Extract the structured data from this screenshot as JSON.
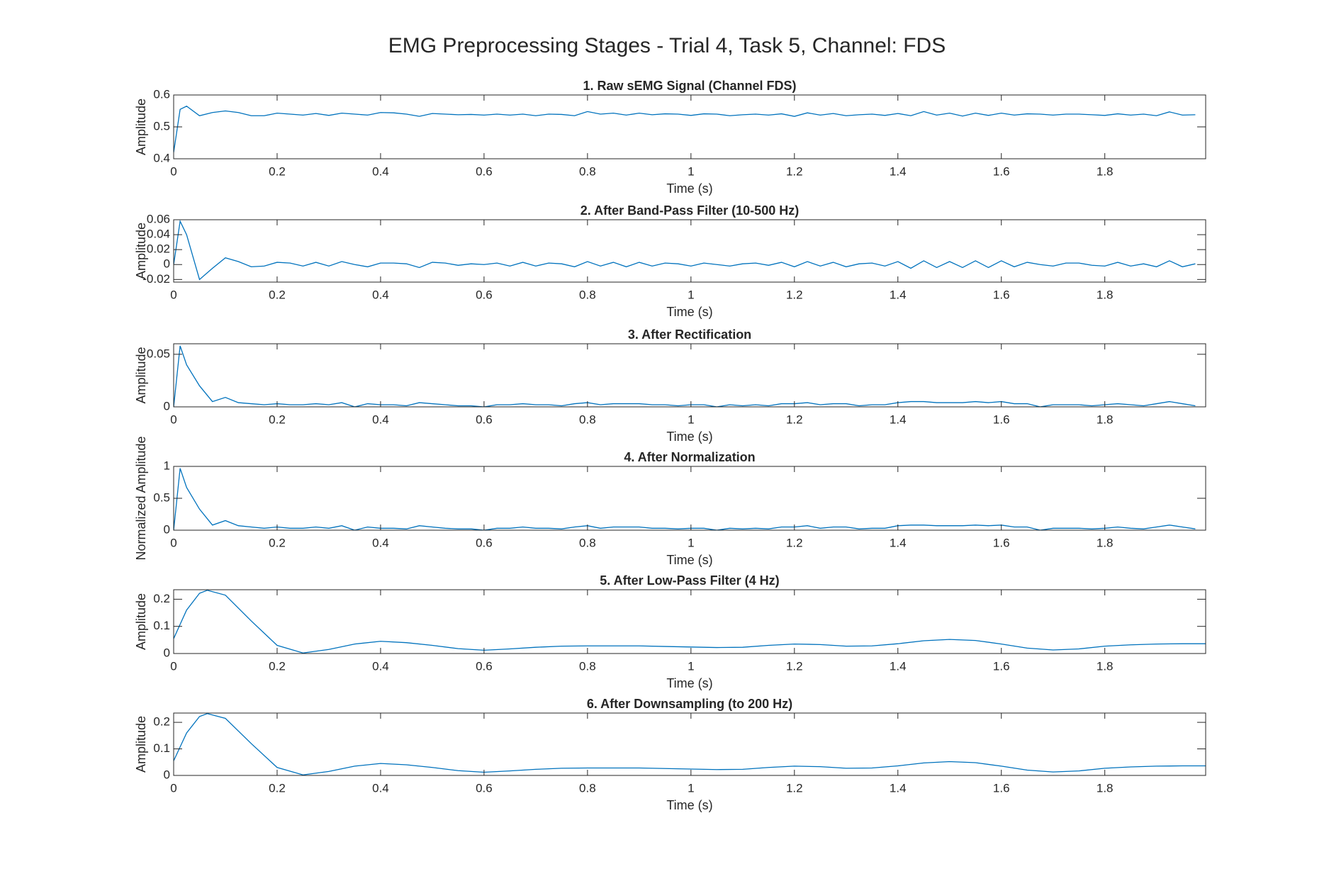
{
  "title": "EMG Preprocessing Stages - Trial 4, Task 5, Channel: FDS",
  "chart_data": [
    {
      "type": "line",
      "title": "1. Raw sEMG Signal (Channel FDS)",
      "xlabel": "Time (s)",
      "ylabel": "Amplitude",
      "color": "#0072bd",
      "x": [
        0,
        0.0125,
        0.025,
        0.05,
        0.075,
        0.1,
        0.125,
        0.15,
        0.175,
        0.2,
        0.225,
        0.25,
        0.275,
        0.3,
        0.325,
        0.35,
        0.375,
        0.4,
        0.425,
        0.45,
        0.475,
        0.5,
        0.525,
        0.55,
        0.575,
        0.6,
        0.625,
        0.65,
        0.675,
        0.7,
        0.725,
        0.75,
        0.775,
        0.8,
        0.825,
        0.85,
        0.875,
        0.9,
        0.925,
        0.95,
        0.975,
        1.0,
        1.025,
        1.05,
        1.075,
        1.1,
        1.125,
        1.15,
        1.175,
        1.2,
        1.225,
        1.25,
        1.275,
        1.3,
        1.325,
        1.35,
        1.375,
        1.4,
        1.425,
        1.45,
        1.475,
        1.5,
        1.525,
        1.55,
        1.575,
        1.6,
        1.625,
        1.65,
        1.675,
        1.7,
        1.725,
        1.75,
        1.775,
        1.8,
        1.825,
        1.85,
        1.875,
        1.9,
        1.925,
        1.95,
        1.975
      ],
      "values": [
        0.42,
        0.555,
        0.565,
        0.535,
        0.545,
        0.55,
        0.545,
        0.535,
        0.535,
        0.543,
        0.54,
        0.537,
        0.542,
        0.536,
        0.543,
        0.54,
        0.537,
        0.545,
        0.544,
        0.54,
        0.533,
        0.542,
        0.54,
        0.538,
        0.539,
        0.537,
        0.54,
        0.537,
        0.54,
        0.535,
        0.54,
        0.539,
        0.535,
        0.548,
        0.54,
        0.543,
        0.537,
        0.543,
        0.538,
        0.541,
        0.54,
        0.536,
        0.541,
        0.54,
        0.535,
        0.538,
        0.54,
        0.537,
        0.541,
        0.533,
        0.544,
        0.537,
        0.542,
        0.535,
        0.538,
        0.54,
        0.536,
        0.542,
        0.535,
        0.548,
        0.537,
        0.543,
        0.534,
        0.543,
        0.536,
        0.543,
        0.537,
        0.541,
        0.54,
        0.537,
        0.54,
        0.54,
        0.538,
        0.536,
        0.541,
        0.537,
        0.54,
        0.535,
        0.547,
        0.537,
        0.538
      ],
      "xlim": [
        0,
        1.995
      ],
      "xticks": [
        0,
        0.2,
        0.4,
        0.6,
        0.8,
        1,
        1.2,
        1.4,
        1.6,
        1.8
      ],
      "ylim": [
        0.4,
        0.6
      ],
      "yticks": [
        0.4,
        0.5,
        0.6
      ]
    },
    {
      "type": "line",
      "title": "2. After Band-Pass Filter (10-500 Hz)",
      "xlabel": "Time (s)",
      "ylabel": "Amplitude",
      "color": "#0072bd",
      "x": [
        0,
        0.0125,
        0.025,
        0.05,
        0.075,
        0.1,
        0.125,
        0.15,
        0.175,
        0.2,
        0.225,
        0.25,
        0.275,
        0.3,
        0.325,
        0.35,
        0.375,
        0.4,
        0.425,
        0.45,
        0.475,
        0.5,
        0.525,
        0.55,
        0.575,
        0.6,
        0.625,
        0.65,
        0.675,
        0.7,
        0.725,
        0.75,
        0.775,
        0.8,
        0.825,
        0.85,
        0.875,
        0.9,
        0.925,
        0.95,
        0.975,
        1.0,
        1.025,
        1.05,
        1.075,
        1.1,
        1.125,
        1.15,
        1.175,
        1.2,
        1.225,
        1.25,
        1.275,
        1.3,
        1.325,
        1.35,
        1.375,
        1.4,
        1.425,
        1.45,
        1.475,
        1.5,
        1.525,
        1.55,
        1.575,
        1.6,
        1.625,
        1.65,
        1.675,
        1.7,
        1.725,
        1.75,
        1.775,
        1.8,
        1.825,
        1.85,
        1.875,
        1.9,
        1.925,
        1.95,
        1.975
      ],
      "values": [
        0,
        0.058,
        0.04,
        -0.02,
        -0.005,
        0.009,
        0.004,
        -0.003,
        -0.002,
        0.003,
        0.002,
        -0.002,
        0.003,
        -0.002,
        0.004,
        0,
        -0.003,
        0.002,
        0.002,
        0.001,
        -0.004,
        0.003,
        0.002,
        -0.001,
        0.001,
        0,
        0.002,
        -0.002,
        0.003,
        -0.002,
        0.002,
        0.001,
        -0.003,
        0.004,
        -0.002,
        0.003,
        -0.003,
        0.003,
        -0.002,
        0.002,
        0.001,
        -0.002,
        0.002,
        0,
        -0.002,
        0.001,
        0.002,
        -0.001,
        0.003,
        -0.003,
        0.004,
        -0.002,
        0.003,
        -0.003,
        0.001,
        0.002,
        -0.002,
        0.004,
        -0.005,
        0.005,
        -0.004,
        0.004,
        -0.004,
        0.005,
        -0.004,
        0.005,
        -0.003,
        0.003,
        0,
        -0.002,
        0.002,
        0.002,
        -0.001,
        -0.002,
        0.003,
        -0.002,
        0.001,
        -0.003,
        0.005,
        -0.003,
        0.001
      ],
      "xlim": [
        0,
        1.995
      ],
      "xticks": [
        0,
        0.2,
        0.4,
        0.6,
        0.8,
        1,
        1.2,
        1.4,
        1.6,
        1.8
      ],
      "ylim": [
        -0.0235,
        0.06
      ],
      "yticks": [
        -0.02,
        0,
        0.02,
        0.04,
        0.06
      ]
    },
    {
      "type": "line",
      "title": "3. After Rectification",
      "xlabel": "Time (s)",
      "ylabel": "Amplitude",
      "color": "#0072bd",
      "x": [
        0,
        0.0125,
        0.025,
        0.05,
        0.075,
        0.1,
        0.125,
        0.15,
        0.175,
        0.2,
        0.225,
        0.25,
        0.275,
        0.3,
        0.325,
        0.35,
        0.375,
        0.4,
        0.425,
        0.45,
        0.475,
        0.5,
        0.525,
        0.55,
        0.575,
        0.6,
        0.625,
        0.65,
        0.675,
        0.7,
        0.725,
        0.75,
        0.775,
        0.8,
        0.825,
        0.85,
        0.875,
        0.9,
        0.925,
        0.95,
        0.975,
        1.0,
        1.025,
        1.05,
        1.075,
        1.1,
        1.125,
        1.15,
        1.175,
        1.2,
        1.225,
        1.25,
        1.275,
        1.3,
        1.325,
        1.35,
        1.375,
        1.4,
        1.425,
        1.45,
        1.475,
        1.5,
        1.525,
        1.55,
        1.575,
        1.6,
        1.625,
        1.65,
        1.675,
        1.7,
        1.725,
        1.75,
        1.775,
        1.8,
        1.825,
        1.85,
        1.875,
        1.9,
        1.925,
        1.95,
        1.975
      ],
      "values": [
        0,
        0.058,
        0.04,
        0.02,
        0.005,
        0.009,
        0.004,
        0.003,
        0.002,
        0.003,
        0.002,
        0.002,
        0.003,
        0.002,
        0.004,
        0,
        0.003,
        0.002,
        0.002,
        0.001,
        0.004,
        0.003,
        0.002,
        0.001,
        0.001,
        0,
        0.002,
        0.002,
        0.003,
        0.002,
        0.002,
        0.001,
        0.003,
        0.004,
        0.002,
        0.003,
        0.003,
        0.003,
        0.002,
        0.002,
        0.001,
        0.002,
        0.002,
        0,
        0.002,
        0.001,
        0.002,
        0.001,
        0.003,
        0.003,
        0.004,
        0.002,
        0.003,
        0.003,
        0.001,
        0.002,
        0.002,
        0.004,
        0.005,
        0.005,
        0.004,
        0.004,
        0.004,
        0.005,
        0.004,
        0.005,
        0.003,
        0.003,
        0,
        0.002,
        0.002,
        0.002,
        0.001,
        0.002,
        0.003,
        0.002,
        0.001,
        0.003,
        0.005,
        0.003,
        0.001
      ],
      "xlim": [
        0,
        1.995
      ],
      "xticks": [
        0,
        0.2,
        0.4,
        0.6,
        0.8,
        1,
        1.2,
        1.4,
        1.6,
        1.8
      ],
      "ylim": [
        0,
        0.06
      ],
      "yticks": [
        0,
        0.05
      ]
    },
    {
      "type": "line",
      "title": "4. After Normalization",
      "xlabel": "Time (s)",
      "ylabel": "Normalized Amplitude",
      "color": "#0072bd",
      "x": [
        0,
        0.0125,
        0.025,
        0.05,
        0.075,
        0.1,
        0.125,
        0.15,
        0.175,
        0.2,
        0.225,
        0.25,
        0.275,
        0.3,
        0.325,
        0.35,
        0.375,
        0.4,
        0.425,
        0.45,
        0.475,
        0.5,
        0.525,
        0.55,
        0.575,
        0.6,
        0.625,
        0.65,
        0.675,
        0.7,
        0.725,
        0.75,
        0.775,
        0.8,
        0.825,
        0.85,
        0.875,
        0.9,
        0.925,
        0.95,
        0.975,
        1.0,
        1.025,
        1.05,
        1.075,
        1.1,
        1.125,
        1.15,
        1.175,
        1.2,
        1.225,
        1.25,
        1.275,
        1.3,
        1.325,
        1.35,
        1.375,
        1.4,
        1.425,
        1.45,
        1.475,
        1.5,
        1.525,
        1.55,
        1.575,
        1.6,
        1.625,
        1.65,
        1.675,
        1.7,
        1.725,
        1.75,
        1.775,
        1.8,
        1.825,
        1.85,
        1.875,
        1.9,
        1.925,
        1.95,
        1.975
      ],
      "values": [
        0,
        0.97,
        0.67,
        0.33,
        0.08,
        0.15,
        0.07,
        0.05,
        0.03,
        0.05,
        0.03,
        0.03,
        0.05,
        0.03,
        0.07,
        0,
        0.05,
        0.03,
        0.03,
        0.02,
        0.07,
        0.05,
        0.03,
        0.02,
        0.02,
        0,
        0.03,
        0.03,
        0.05,
        0.03,
        0.03,
        0.02,
        0.05,
        0.07,
        0.03,
        0.05,
        0.05,
        0.05,
        0.03,
        0.03,
        0.02,
        0.03,
        0.03,
        0,
        0.03,
        0.02,
        0.03,
        0.02,
        0.05,
        0.05,
        0.07,
        0.03,
        0.05,
        0.05,
        0.02,
        0.03,
        0.03,
        0.07,
        0.08,
        0.08,
        0.07,
        0.07,
        0.07,
        0.08,
        0.07,
        0.08,
        0.05,
        0.05,
        0,
        0.03,
        0.03,
        0.03,
        0.02,
        0.03,
        0.05,
        0.03,
        0.02,
        0.05,
        0.08,
        0.05,
        0.02
      ],
      "xlim": [
        0,
        1.995
      ],
      "xticks": [
        0,
        0.2,
        0.4,
        0.6,
        0.8,
        1,
        1.2,
        1.4,
        1.6,
        1.8
      ],
      "ylim": [
        0,
        1
      ],
      "yticks": [
        0,
        0.5,
        1
      ]
    },
    {
      "type": "line",
      "title": "5. After Low-Pass Filter (4 Hz)",
      "xlabel": "Time (s)",
      "ylabel": "Amplitude",
      "color": "#0072bd",
      "x": [
        0,
        0.025,
        0.05,
        0.065,
        0.1,
        0.15,
        0.2,
        0.25,
        0.3,
        0.35,
        0.4,
        0.45,
        0.5,
        0.55,
        0.6,
        0.65,
        0.7,
        0.75,
        0.8,
        0.85,
        0.9,
        0.95,
        1.0,
        1.05,
        1.1,
        1.15,
        1.2,
        1.25,
        1.3,
        1.35,
        1.4,
        1.45,
        1.5,
        1.55,
        1.6,
        1.65,
        1.7,
        1.75,
        1.8,
        1.85,
        1.9,
        1.95,
        1.995
      ],
      "values": [
        0.055,
        0.16,
        0.222,
        0.233,
        0.215,
        0.12,
        0.03,
        0.002,
        0.015,
        0.035,
        0.045,
        0.04,
        0.03,
        0.018,
        0.012,
        0.017,
        0.023,
        0.027,
        0.028,
        0.028,
        0.028,
        0.026,
        0.024,
        0.022,
        0.023,
        0.03,
        0.035,
        0.033,
        0.027,
        0.028,
        0.036,
        0.047,
        0.052,
        0.048,
        0.035,
        0.02,
        0.013,
        0.017,
        0.027,
        0.032,
        0.035,
        0.036,
        0.036
      ],
      "xlim": [
        0,
        1.995
      ],
      "xticks": [
        0,
        0.2,
        0.4,
        0.6,
        0.8,
        1,
        1.2,
        1.4,
        1.6,
        1.8
      ],
      "ylim": [
        0,
        0.235
      ],
      "yticks": [
        0,
        0.1,
        0.2
      ]
    },
    {
      "type": "line",
      "title": "6. After Downsampling (to 200 Hz)",
      "xlabel": "Time (s)",
      "ylabel": "Amplitude",
      "color": "#0072bd",
      "x": [
        0,
        0.025,
        0.05,
        0.065,
        0.1,
        0.15,
        0.2,
        0.25,
        0.3,
        0.35,
        0.4,
        0.45,
        0.5,
        0.55,
        0.6,
        0.65,
        0.7,
        0.75,
        0.8,
        0.85,
        0.9,
        0.95,
        1.0,
        1.05,
        1.1,
        1.15,
        1.2,
        1.25,
        1.3,
        1.35,
        1.4,
        1.45,
        1.5,
        1.55,
        1.6,
        1.65,
        1.7,
        1.75,
        1.8,
        1.85,
        1.9,
        1.95,
        1.995
      ],
      "values": [
        0.055,
        0.16,
        0.222,
        0.233,
        0.215,
        0.12,
        0.03,
        0.002,
        0.015,
        0.035,
        0.045,
        0.04,
        0.03,
        0.018,
        0.012,
        0.017,
        0.023,
        0.027,
        0.028,
        0.028,
        0.028,
        0.026,
        0.024,
        0.022,
        0.023,
        0.03,
        0.035,
        0.033,
        0.027,
        0.028,
        0.036,
        0.047,
        0.052,
        0.048,
        0.035,
        0.02,
        0.013,
        0.017,
        0.027,
        0.032,
        0.035,
        0.036,
        0.036
      ],
      "xlim": [
        0,
        1.995
      ],
      "xticks": [
        0,
        0.2,
        0.4,
        0.6,
        0.8,
        1,
        1.2,
        1.4,
        1.6,
        1.8
      ],
      "ylim": [
        0,
        0.235
      ],
      "yticks": [
        0,
        0.1,
        0.2
      ]
    }
  ]
}
